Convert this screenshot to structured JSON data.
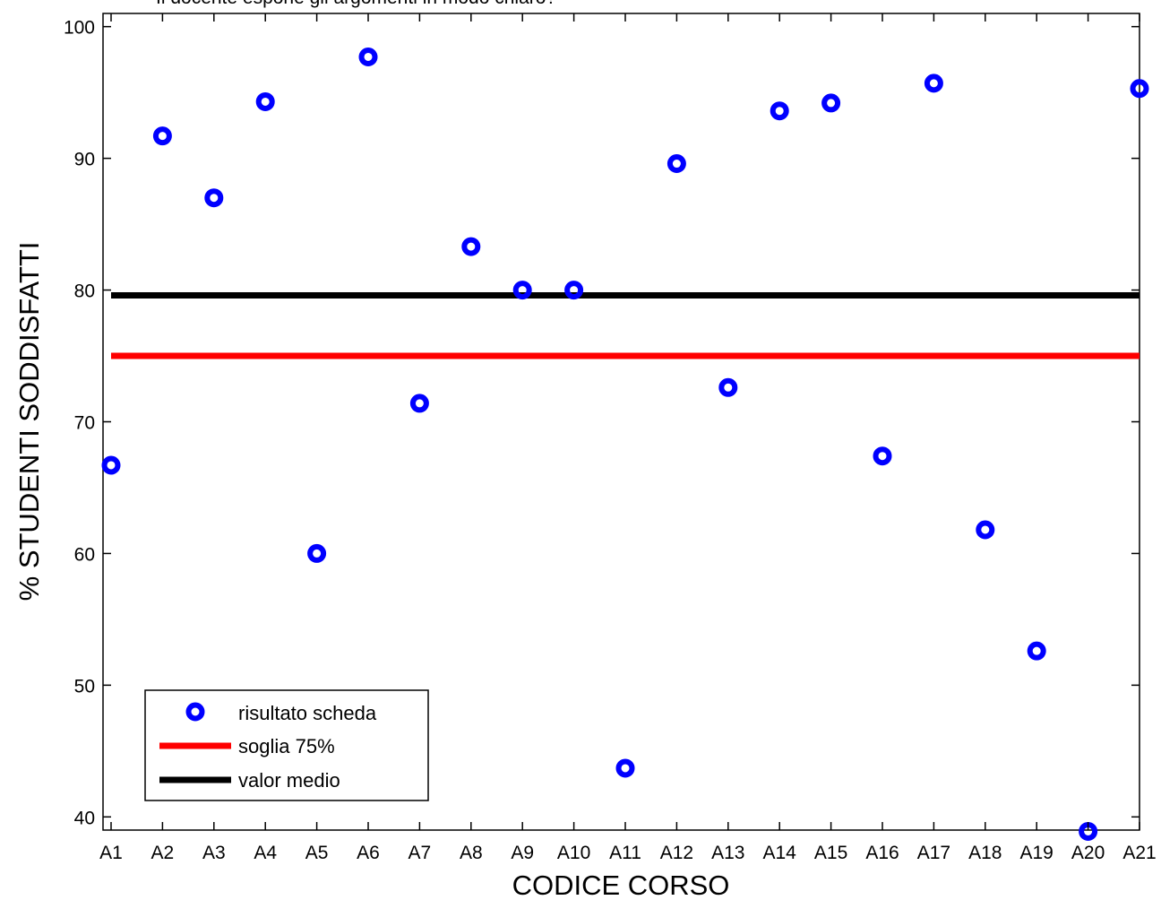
{
  "chart_data": {
    "type": "scatter",
    "title": "Il docente espone gli argomenti in modo chiaro?",
    "xlabel": "CODICE CORSO",
    "ylabel": "% STUDENTI SODDISFATTI",
    "categories": [
      "A1",
      "A2",
      "A3",
      "A4",
      "A5",
      "A6",
      "A7",
      "A8",
      "A9",
      "A10",
      "A11",
      "A12",
      "A13",
      "A14",
      "A15",
      "A16",
      "A17",
      "A18",
      "A19",
      "A20",
      "A21"
    ],
    "ylim": [
      39,
      101
    ],
    "yticks": [
      "40",
      "50",
      "60",
      "70",
      "80",
      "90",
      "100"
    ],
    "series": [
      {
        "name": "risultato scheda",
        "kind": "points",
        "color": "#0000ff",
        "values": [
          66.7,
          91.7,
          87.0,
          94.3,
          60.0,
          97.7,
          71.4,
          83.3,
          80.0,
          80.0,
          43.7,
          89.6,
          72.6,
          93.6,
          94.2,
          67.4,
          95.7,
          61.8,
          52.6,
          38.9,
          95.3
        ]
      },
      {
        "name": "soglia 75%",
        "kind": "hline",
        "color": "#ff0000",
        "value": 75
      },
      {
        "name": "valor medio",
        "kind": "hline",
        "color": "#000000",
        "value": 79.6
      }
    ],
    "grid": false,
    "legend": "bottom-left"
  }
}
